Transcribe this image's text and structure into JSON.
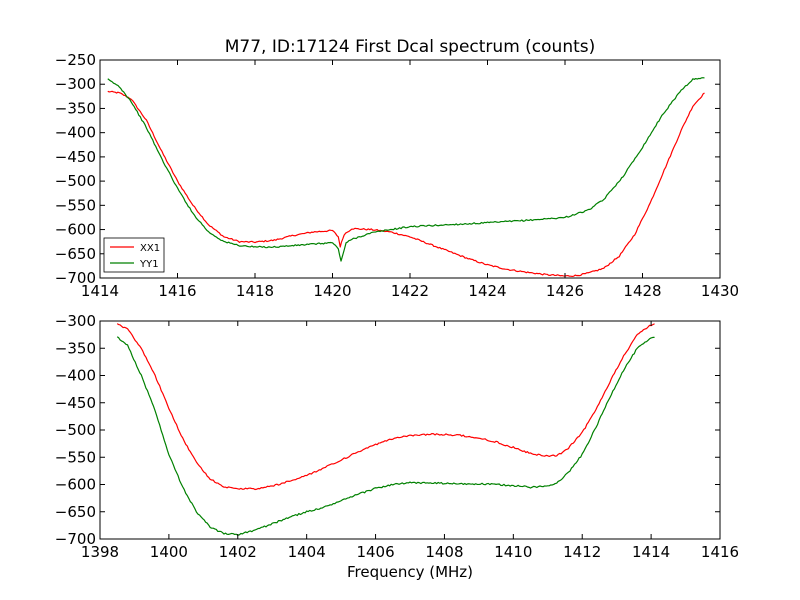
{
  "chart_data": [
    {
      "type": "line",
      "title": "M77, ID:17124 First Dcal spectrum (counts)",
      "xlabel": "",
      "ylabel": "",
      "xlim": [
        1414,
        1430
      ],
      "ylim": [
        -700,
        -250
      ],
      "xticks": [
        1414,
        1416,
        1418,
        1420,
        1422,
        1424,
        1426,
        1428,
        1430
      ],
      "yticks": [
        -250,
        -300,
        -350,
        -400,
        -450,
        -500,
        -550,
        -600,
        -650,
        -700
      ],
      "grid": false,
      "legend": "lower-left",
      "series": [
        {
          "name": "XX1",
          "color": "#ff0000",
          "x": [
            1414.2,
            1414.5,
            1414.8,
            1415.2,
            1415.6,
            1416.0,
            1416.4,
            1416.8,
            1417.2,
            1417.6,
            1418.0,
            1418.5,
            1419.0,
            1419.5,
            1420.0,
            1420.15,
            1420.2,
            1420.3,
            1420.5,
            1421.0,
            1421.5,
            1422.0,
            1422.5,
            1423.0,
            1423.5,
            1424.0,
            1424.5,
            1425.0,
            1425.5,
            1426.0,
            1426.3,
            1426.6,
            1427.0,
            1427.4,
            1427.8,
            1428.2,
            1428.6,
            1429.0,
            1429.3,
            1429.6
          ],
          "values": [
            -315,
            -318,
            -330,
            -375,
            -440,
            -500,
            -550,
            -590,
            -615,
            -625,
            -626,
            -622,
            -612,
            -605,
            -602,
            -615,
            -635,
            -610,
            -598,
            -600,
            -605,
            -615,
            -630,
            -645,
            -660,
            -673,
            -682,
            -688,
            -693,
            -696,
            -695,
            -690,
            -680,
            -655,
            -610,
            -545,
            -470,
            -395,
            -345,
            -318
          ]
        },
        {
          "name": "YY1",
          "color": "#008000",
          "x": [
            1414.2,
            1414.5,
            1414.8,
            1415.2,
            1415.6,
            1416.0,
            1416.4,
            1416.8,
            1417.2,
            1417.6,
            1418.0,
            1418.5,
            1419.0,
            1419.5,
            1420.0,
            1420.15,
            1420.22,
            1420.35,
            1420.5,
            1421.0,
            1421.5,
            1422.0,
            1423.0,
            1424.0,
            1425.0,
            1426.0,
            1426.6,
            1427.0,
            1427.5,
            1428.0,
            1428.5,
            1429.0,
            1429.3,
            1429.6
          ],
          "values": [
            -290,
            -305,
            -335,
            -390,
            -455,
            -515,
            -567,
            -605,
            -625,
            -633,
            -636,
            -636,
            -633,
            -630,
            -627,
            -640,
            -665,
            -628,
            -620,
            -607,
            -600,
            -594,
            -590,
            -586,
            -581,
            -575,
            -560,
            -538,
            -490,
            -430,
            -365,
            -312,
            -290,
            -287
          ]
        }
      ]
    },
    {
      "type": "line",
      "title": "",
      "xlabel": "Frequency (MHz)",
      "ylabel": "",
      "xlim": [
        1398,
        1416
      ],
      "ylim": [
        -700,
        -300
      ],
      "xticks": [
        1398,
        1400,
        1402,
        1404,
        1406,
        1408,
        1410,
        1412,
        1414,
        1416
      ],
      "yticks": [
        -300,
        -350,
        -400,
        -450,
        -500,
        -550,
        -600,
        -650,
        -700
      ],
      "grid": false,
      "series": [
        {
          "color": "#ff0000",
          "x": [
            1398.5,
            1398.8,
            1399.2,
            1399.6,
            1400.0,
            1400.4,
            1400.8,
            1401.2,
            1401.6,
            1402.0,
            1402.5,
            1403.0,
            1403.5,
            1404.0,
            1404.5,
            1405.0,
            1405.5,
            1406.0,
            1406.5,
            1407.0,
            1407.5,
            1408.0,
            1408.5,
            1409.0,
            1409.5,
            1410.0,
            1410.5,
            1411.0,
            1411.3,
            1411.6,
            1412.0,
            1412.4,
            1412.8,
            1413.2,
            1413.6,
            1414.0,
            1414.1
          ],
          "values": [
            -305,
            -315,
            -350,
            -400,
            -460,
            -515,
            -560,
            -590,
            -604,
            -608,
            -608,
            -603,
            -594,
            -583,
            -570,
            -555,
            -540,
            -527,
            -516,
            -510,
            -508,
            -508,
            -510,
            -515,
            -522,
            -532,
            -543,
            -548,
            -546,
            -533,
            -505,
            -462,
            -412,
            -365,
            -325,
            -307,
            -305
          ]
        },
        {
          "color": "#008000",
          "x": [
            1398.5,
            1398.8,
            1399.2,
            1399.6,
            1400.0,
            1400.4,
            1400.8,
            1401.2,
            1401.6,
            1402.0,
            1402.5,
            1403.0,
            1403.5,
            1404.0,
            1404.5,
            1405.0,
            1405.5,
            1406.0,
            1406.5,
            1407.0,
            1407.5,
            1408.0,
            1408.5,
            1409.0,
            1409.5,
            1410.0,
            1410.5,
            1411.0,
            1411.3,
            1411.6,
            1412.0,
            1412.4,
            1412.8,
            1413.2,
            1413.6,
            1414.0,
            1414.1
          ],
          "values": [
            -330,
            -345,
            -400,
            -465,
            -545,
            -605,
            -650,
            -678,
            -690,
            -692,
            -684,
            -672,
            -660,
            -650,
            -642,
            -630,
            -618,
            -607,
            -600,
            -597,
            -597,
            -598,
            -599,
            -599,
            -600,
            -602,
            -605,
            -603,
            -595,
            -578,
            -545,
            -495,
            -440,
            -390,
            -350,
            -332,
            -330
          ]
        }
      ]
    }
  ]
}
